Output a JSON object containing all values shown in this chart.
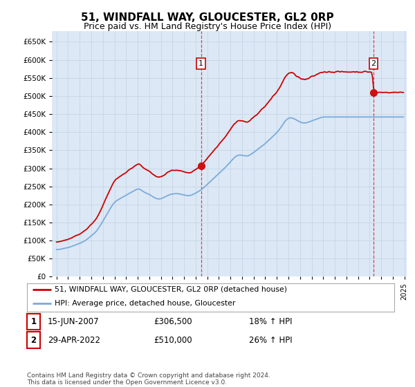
{
  "title": "51, WINDFALL WAY, GLOUCESTER, GL2 0RP",
  "subtitle": "Price paid vs. HM Land Registry's House Price Index (HPI)",
  "title_fontsize": 11,
  "subtitle_fontsize": 9,
  "line1_label": "51, WINDFALL WAY, GLOUCESTER, GL2 0RP (detached house)",
  "line2_label": "HPI: Average price, detached house, Gloucester",
  "line1_color": "#cc0000",
  "line2_color": "#7aabdb",
  "grid_color": "#c8d8e8",
  "plot_bg_color": "#dce8f5",
  "ann1_x": 2007.46,
  "ann1_y": 306500,
  "ann2_x": 2022.33,
  "ann2_y": 510000,
  "table_rows": [
    {
      "label": "1",
      "date": "15-JUN-2007",
      "price": "£306,500",
      "change": "18% ↑ HPI"
    },
    {
      "label": "2",
      "date": "29-APR-2022",
      "price": "£510,000",
      "change": "26% ↑ HPI"
    }
  ],
  "footer": "Contains HM Land Registry data © Crown copyright and database right 2024.\nThis data is licensed under the Open Government Licence v3.0.",
  "ylim": [
    0,
    680000
  ],
  "yticks": [
    0,
    50000,
    100000,
    150000,
    200000,
    250000,
    300000,
    350000,
    400000,
    450000,
    500000,
    550000,
    600000,
    650000
  ],
  "xlim_left": 1994.6,
  "xlim_right": 2025.2,
  "hpi_data": [
    75000,
    74500,
    75200,
    76000,
    75800,
    76500,
    77200,
    77800,
    78500,
    79000,
    79500,
    80000,
    80500,
    81200,
    82000,
    83000,
    84000,
    85000,
    86200,
    87500,
    88800,
    89500,
    90200,
    91000,
    92000,
    93000,
    94500,
    96000,
    97500,
    99000,
    100500,
    102000,
    104000,
    106500,
    109000,
    111000,
    113000,
    115000,
    117000,
    119500,
    122000,
    125000,
    128500,
    132000,
    136000,
    140000,
    144500,
    149000,
    154000,
    159000,
    163500,
    168000,
    172500,
    177000,
    181500,
    186000,
    190500,
    195000,
    199000,
    203000,
    206000,
    208500,
    210500,
    212000,
    213500,
    215000,
    216500,
    218000,
    219500,
    221000,
    222500,
    224000,
    225500,
    227000,
    228500,
    230000,
    231500,
    233000,
    234500,
    236000,
    237500,
    239000,
    240500,
    242000,
    243500,
    244000,
    243000,
    241000,
    239000,
    237000,
    235000,
    233500,
    232000,
    231000,
    230000,
    229000,
    228000,
    226500,
    224500,
    222500,
    220500,
    219000,
    217500,
    216500,
    215500,
    215000,
    214800,
    215000,
    215500,
    216500,
    217800,
    219000,
    220500,
    222000,
    223500,
    225000,
    226000,
    227000,
    228000,
    228500,
    229000,
    229500,
    229800,
    230000,
    230000,
    230000,
    229800,
    229500,
    228800,
    228000,
    227200,
    226500,
    226000,
    225500,
    225000,
    224500,
    224000,
    224000,
    224500,
    225000,
    226000,
    227000,
    228500,
    230000,
    231500,
    233000,
    234500,
    236000,
    237500,
    239000,
    241000,
    243000,
    245500,
    248000,
    250500,
    253000,
    255500,
    258000,
    260500,
    263000,
    265500,
    268000,
    270500,
    273000,
    275500,
    278000,
    280500,
    283000,
    285500,
    288000,
    290500,
    293000,
    295500,
    298000,
    300500,
    303000,
    306000,
    309000,
    312000,
    315000,
    318000,
    321000,
    324000,
    327000,
    329500,
    332000,
    334000,
    335500,
    336500,
    337000,
    337000,
    336500,
    336000,
    335500,
    335000,
    334500,
    334000,
    333500,
    334000,
    335000,
    336500,
    338000,
    340000,
    342000,
    344000,
    346000,
    348000,
    350000,
    352000,
    354000,
    356000,
    358000,
    360000,
    362000,
    364000,
    366000,
    368500,
    371000,
    373500,
    376000,
    378500,
    381000,
    383500,
    386000,
    388500,
    391000,
    393500,
    396000,
    399000,
    402000,
    405000,
    408500,
    412000,
    416000,
    420000,
    424500,
    429000,
    432500,
    435000,
    437000,
    438500,
    439500,
    440000,
    440000,
    439500,
    438500,
    437000,
    435500,
    434000,
    432500,
    431000,
    429500,
    428000,
    427000,
    426000,
    425500,
    425000,
    425000,
    425500,
    426000,
    427000,
    428000,
    429000,
    430000,
    431000,
    432000,
    433000,
    434000,
    435000,
    436000,
    437000,
    438000,
    439000,
    440000,
    441000,
    442000
  ],
  "prop_data_seg1_scale": 1.267,
  "prop_data_seg2_scale": 1.257
}
